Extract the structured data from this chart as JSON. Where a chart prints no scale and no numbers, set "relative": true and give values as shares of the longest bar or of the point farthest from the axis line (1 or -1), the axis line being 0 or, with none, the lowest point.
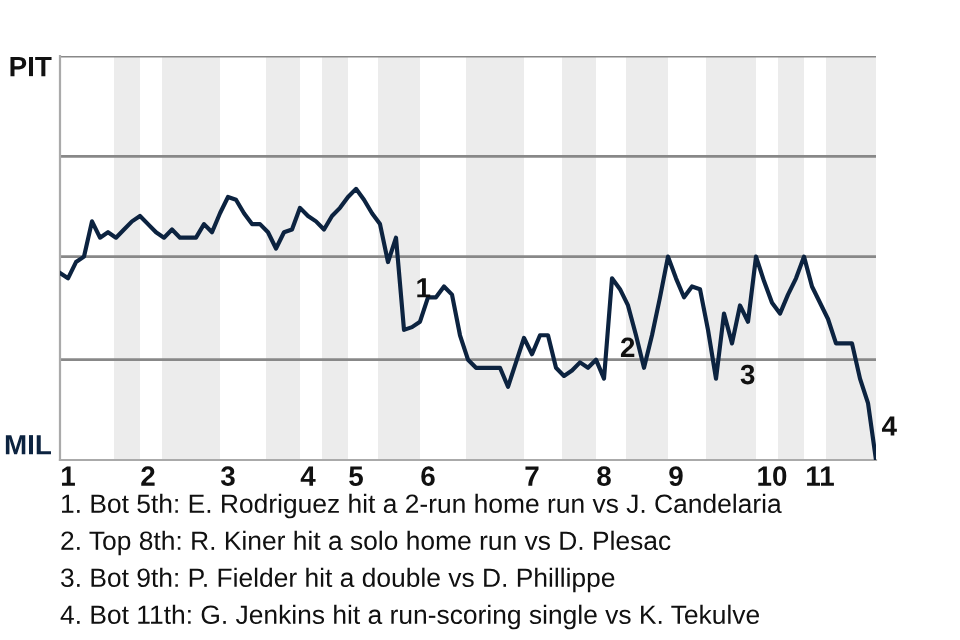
{
  "chart_data": {
    "type": "line",
    "relative": true,
    "categories": [
      null,
      "1",
      null,
      null,
      null,
      null,
      null,
      null,
      null,
      null,
      null,
      "2",
      null,
      null,
      null,
      null,
      null,
      null,
      null,
      null,
      null,
      "3",
      null,
      null,
      null,
      null,
      null,
      null,
      null,
      null,
      null,
      "4",
      null,
      null,
      null,
      null,
      null,
      "5",
      null,
      null,
      null,
      null,
      null,
      null,
      null,
      null,
      "6",
      null,
      null,
      null,
      null,
      null,
      null,
      null,
      null,
      null,
      null,
      null,
      null,
      "7",
      null,
      null,
      null,
      null,
      null,
      null,
      null,
      null,
      "8",
      null,
      null,
      null,
      null,
      null,
      null,
      null,
      null,
      "9",
      null,
      null,
      null,
      null,
      null,
      null,
      null,
      null,
      null,
      null,
      null,
      "10",
      null,
      null,
      null,
      null,
      null,
      "11",
      null,
      null,
      null,
      null,
      null,
      null,
      null
    ],
    "series": [
      {
        "color": "#0c2340",
        "values": [
          0.69,
          0.67,
          0.73,
          0.75,
          0.88,
          0.82,
          0.84,
          0.82,
          0.85,
          0.88,
          0.9,
          0.87,
          0.84,
          0.82,
          0.85,
          0.82,
          0.82,
          0.82,
          0.87,
          0.84,
          0.91,
          0.97,
          0.96,
          0.91,
          0.87,
          0.87,
          0.84,
          0.78,
          0.84,
          0.85,
          0.93,
          0.9,
          0.88,
          0.85,
          0.9,
          0.93,
          0.97,
          1,
          0.96,
          0.91,
          0.87,
          0.73,
          0.82,
          0.48,
          0.49,
          0.51,
          0.6,
          0.6,
          0.64,
          0.61,
          0.46,
          0.37,
          0.34,
          0.34,
          0.34,
          0.34,
          0.27,
          0.36,
          0.45,
          0.39,
          0.46,
          0.46,
          0.34,
          0.31,
          0.33,
          0.36,
          0.34,
          0.37,
          0.3,
          0.67,
          0.63,
          0.57,
          0.46,
          0.34,
          0.46,
          0.6,
          0.75,
          0.67,
          0.6,
          0.64,
          0.63,
          0.48,
          0.3,
          0.54,
          0.43,
          0.57,
          0.51,
          0.75,
          0.66,
          0.58,
          0.54,
          0.61,
          0.67,
          0.75,
          0.64,
          0.58,
          0.52,
          0.43,
          0.43,
          0.43,
          0.3,
          0.21,
          0
        ]
      }
    ],
    "marker": "none",
    "line_style": "solid",
    "legend": false,
    "ref_lines": [
      {
        "axis": "y",
        "value": 0.37,
        "color": "#888888"
      },
      {
        "axis": "y",
        "value": 0.75,
        "color": "#888888"
      },
      {
        "axis": "y",
        "value": 1.12,
        "color": "#888888"
      },
      {
        "axis": "y",
        "value": 1.49,
        "color": "#888888"
      }
    ],
    "annotations": [
      "1",
      "2",
      "3",
      "4",
      "PIT",
      "MIL",
      "1. Bot 5th: E. Rodriguez hit a 2-run home run vs J. Candelaria",
      "2. Top 8th: R. Kiner hit a solo home run vs D. Plesac",
      "3. Bot 9th: P. Fielder hit a double vs D. Phillippe",
      "4. Bot 11th: G. Jenkins hit a run-scoring single vs K. Tekulve"
    ]
  }
}
